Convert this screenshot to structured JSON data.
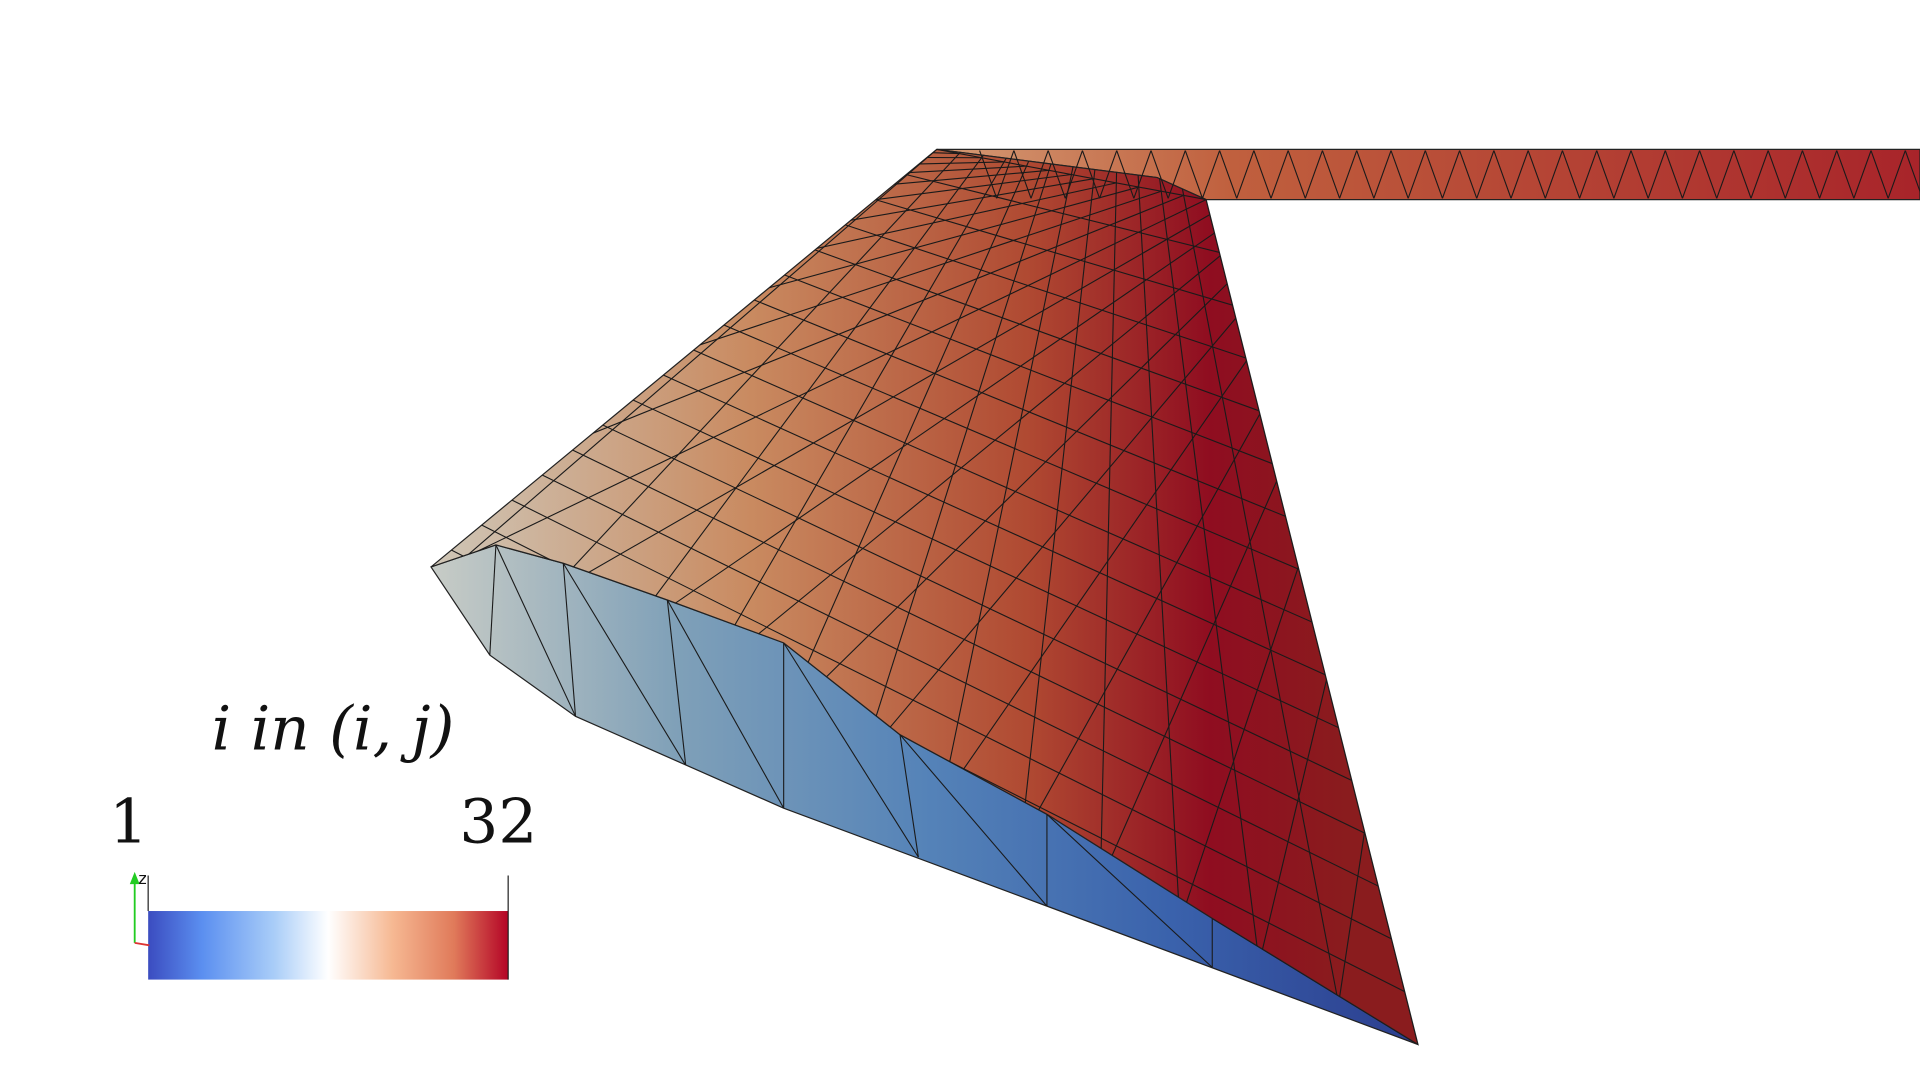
{
  "colorbar": {
    "title": "i in (i, j)",
    "min": 1,
    "max": 32
  }
}
